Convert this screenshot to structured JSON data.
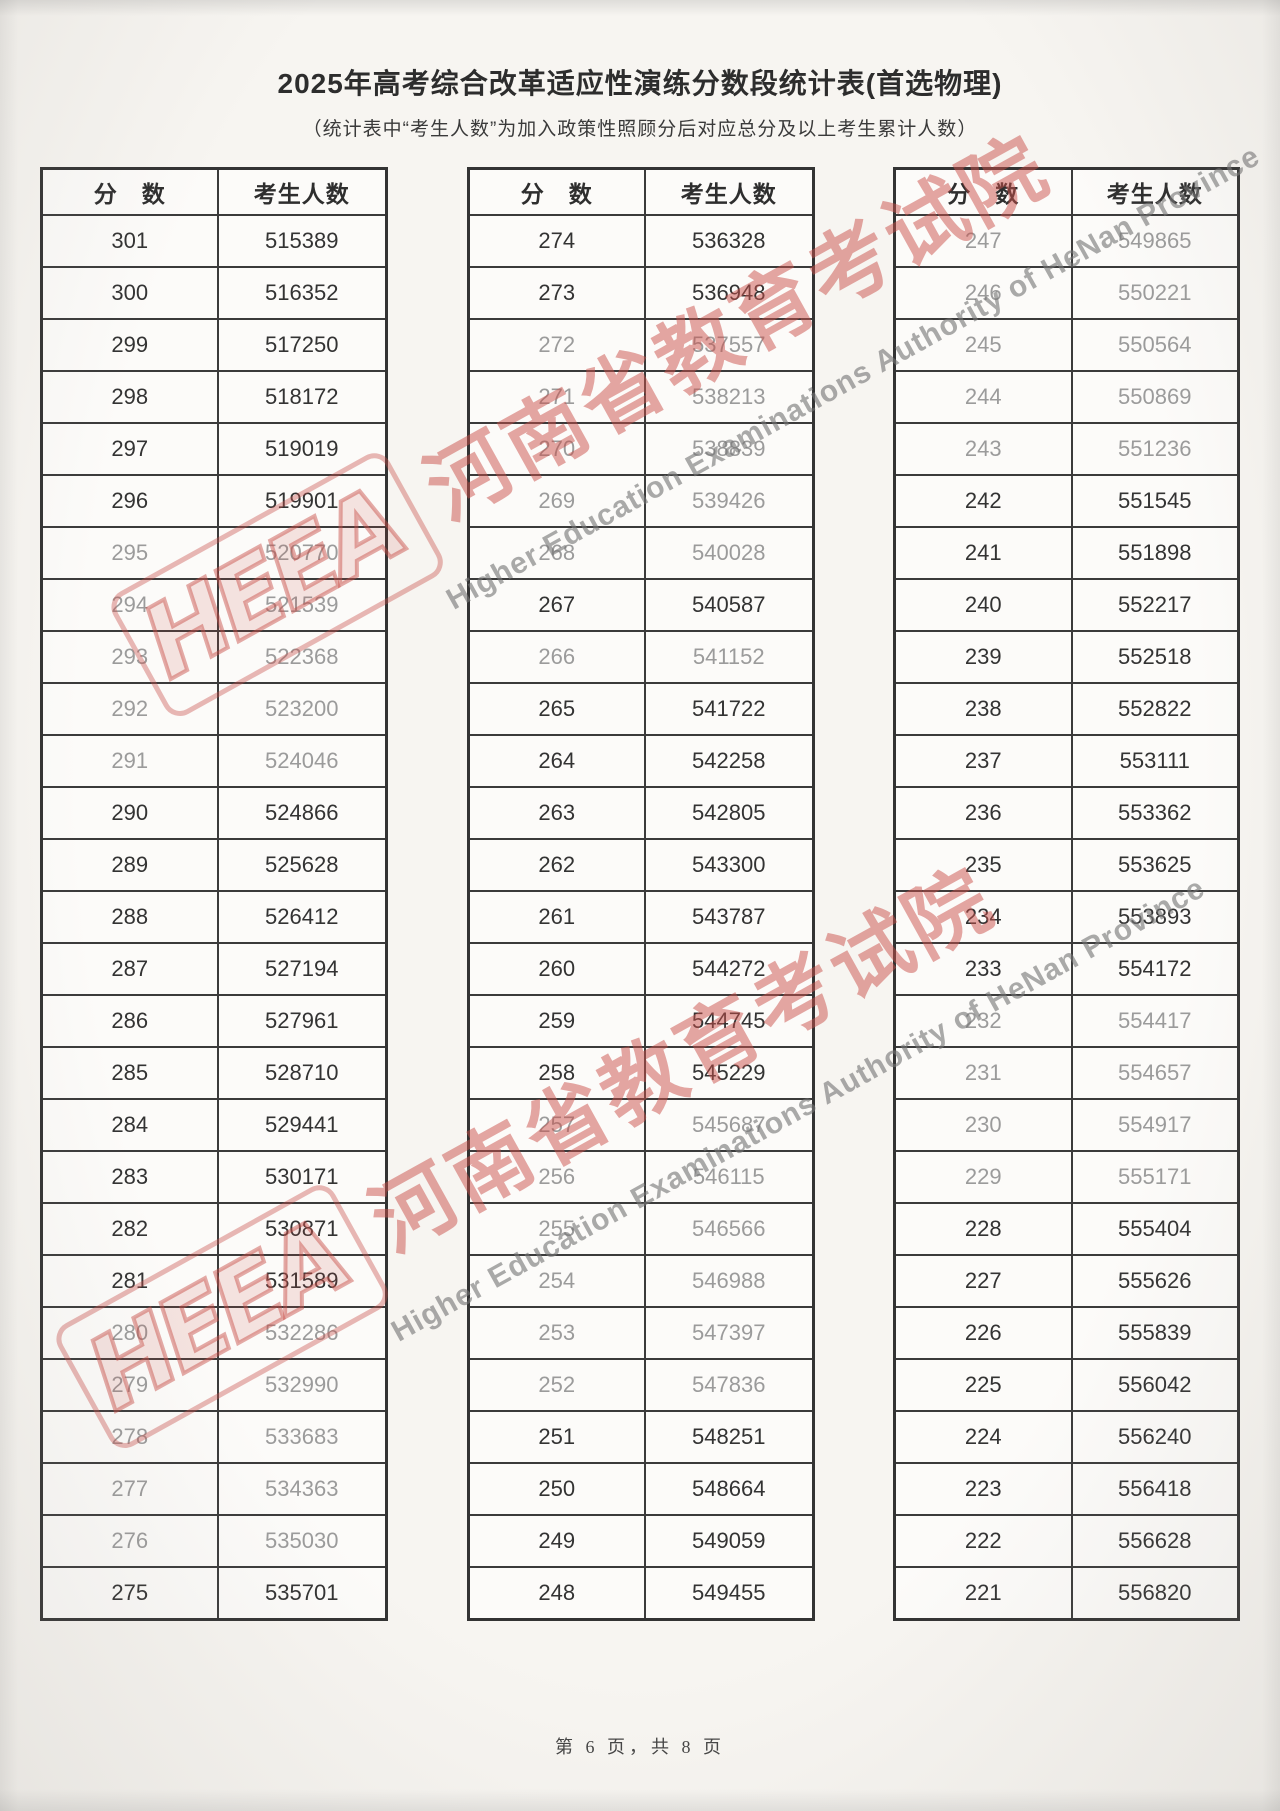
{
  "page": {
    "title": "2025年高考综合改革适应性演练分数段统计表(首选物理)",
    "subtitle": "（统计表中“考生人数”为加入政策性照顾分后对应总分及以上考生累计人数）",
    "footer": "第 6 页，共 8 页"
  },
  "columns": {
    "score": "分　数",
    "count": "考生人数"
  },
  "watermark": {
    "logo": "HEEA",
    "cn": "河南省教育考试院",
    "en": "Higher Education Examinations Authority of HeNan Province",
    "red": "#c9504a",
    "gray": "#767676"
  },
  "tables": [
    {
      "name": "score-table-1",
      "rows": [
        [
          "301",
          "515389",
          0
        ],
        [
          "300",
          "516352",
          0
        ],
        [
          "299",
          "517250",
          0
        ],
        [
          "298",
          "518172",
          0
        ],
        [
          "297",
          "519019",
          0
        ],
        [
          "296",
          "519901",
          0
        ],
        [
          "295",
          "520770",
          1
        ],
        [
          "294",
          "521539",
          1
        ],
        [
          "293",
          "522368",
          1
        ],
        [
          "292",
          "523200",
          1
        ],
        [
          "291",
          "524046",
          1
        ],
        [
          "290",
          "524866",
          0
        ],
        [
          "289",
          "525628",
          0
        ],
        [
          "288",
          "526412",
          0
        ],
        [
          "287",
          "527194",
          0
        ],
        [
          "286",
          "527961",
          0
        ],
        [
          "285",
          "528710",
          0
        ],
        [
          "284",
          "529441",
          0
        ],
        [
          "283",
          "530171",
          0
        ],
        [
          "282",
          "530871",
          0
        ],
        [
          "281",
          "531589",
          0
        ],
        [
          "280",
          "532286",
          1
        ],
        [
          "279",
          "532990",
          1
        ],
        [
          "278",
          "533683",
          1
        ],
        [
          "277",
          "534363",
          1
        ],
        [
          "276",
          "535030",
          1
        ],
        [
          "275",
          "535701",
          0
        ]
      ]
    },
    {
      "name": "score-table-2",
      "rows": [
        [
          "274",
          "536328",
          0
        ],
        [
          "273",
          "536948",
          0
        ],
        [
          "272",
          "537557",
          1
        ],
        [
          "271",
          "538213",
          1
        ],
        [
          "270",
          "538839",
          1
        ],
        [
          "269",
          "539426",
          1
        ],
        [
          "268",
          "540028",
          1
        ],
        [
          "267",
          "540587",
          0
        ],
        [
          "266",
          "541152",
          1
        ],
        [
          "265",
          "541722",
          0
        ],
        [
          "264",
          "542258",
          0
        ],
        [
          "263",
          "542805",
          0
        ],
        [
          "262",
          "543300",
          0
        ],
        [
          "261",
          "543787",
          0
        ],
        [
          "260",
          "544272",
          0
        ],
        [
          "259",
          "544745",
          0
        ],
        [
          "258",
          "545229",
          0
        ],
        [
          "257",
          "545687",
          1
        ],
        [
          "256",
          "546115",
          1
        ],
        [
          "255",
          "546566",
          1
        ],
        [
          "254",
          "546988",
          1
        ],
        [
          "253",
          "547397",
          1
        ],
        [
          "252",
          "547836",
          1
        ],
        [
          "251",
          "548251",
          0
        ],
        [
          "250",
          "548664",
          0
        ],
        [
          "249",
          "549059",
          0
        ],
        [
          "248",
          "549455",
          0
        ]
      ]
    },
    {
      "name": "score-table-3",
      "rows": [
        [
          "247",
          "549865",
          1
        ],
        [
          "246",
          "550221",
          1
        ],
        [
          "245",
          "550564",
          1
        ],
        [
          "244",
          "550869",
          1
        ],
        [
          "243",
          "551236",
          1
        ],
        [
          "242",
          "551545",
          0
        ],
        [
          "241",
          "551898",
          0
        ],
        [
          "240",
          "552217",
          0
        ],
        [
          "239",
          "552518",
          0
        ],
        [
          "238",
          "552822",
          0
        ],
        [
          "237",
          "553111",
          0
        ],
        [
          "236",
          "553362",
          0
        ],
        [
          "235",
          "553625",
          0
        ],
        [
          "234",
          "553893",
          0
        ],
        [
          "233",
          "554172",
          0
        ],
        [
          "232",
          "554417",
          1
        ],
        [
          "231",
          "554657",
          1
        ],
        [
          "230",
          "554917",
          1
        ],
        [
          "229",
          "555171",
          1
        ],
        [
          "228",
          "555404",
          0
        ],
        [
          "227",
          "555626",
          0
        ],
        [
          "226",
          "555839",
          0
        ],
        [
          "225",
          "556042",
          0
        ],
        [
          "224",
          "556240",
          0
        ],
        [
          "223",
          "556418",
          0
        ],
        [
          "222",
          "556628",
          0
        ],
        [
          "221",
          "556820",
          0
        ]
      ]
    }
  ]
}
